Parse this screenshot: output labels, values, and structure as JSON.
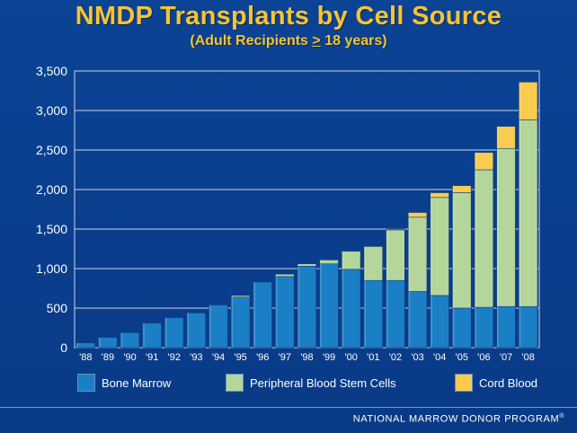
{
  "title": "NMDP Transplants by Cell Source",
  "subtitle_prefix": "(Adult Recipients ",
  "subtitle_symbol": ">",
  "subtitle_suffix": " 18 years)",
  "footer": "NATIONAL MARROW DONOR PROGRAM",
  "footer_mark": "®",
  "colors": {
    "background": "#0a3e8c",
    "title": "#f6c431",
    "bone_marrow": "#1b7fc6",
    "pbsc": "#b5d69a",
    "cord_blood": "#f7cc4f",
    "grid": "#c8d6ee"
  },
  "chart_data": {
    "type": "bar",
    "stacked": true,
    "title": "NMDP Transplants by Cell Source",
    "subtitle": "(Adult Recipients > 18 years)",
    "xlabel": "",
    "ylabel": "",
    "ylim": [
      0,
      3500
    ],
    "yticks": [
      0,
      500,
      1000,
      1500,
      2000,
      2500,
      3000,
      3500
    ],
    "ytick_labels": [
      "0",
      "500",
      "1,000",
      "1,500",
      "2,000",
      "2,500",
      "3,000",
      "3,500"
    ],
    "grid": true,
    "legend_position": "bottom",
    "categories": [
      "'88",
      "'89",
      "'90",
      "'91",
      "'92",
      "'93",
      "'94",
      "'95",
      "'96",
      "'97",
      "'98",
      "'99",
      "'00",
      "'01",
      "'02",
      "'03",
      "'04",
      "'05",
      "'06",
      "'07",
      "'08"
    ],
    "series": [
      {
        "name": "Bone Marrow",
        "color": "#1b7fc6",
        "values": [
          60,
          130,
          190,
          310,
          380,
          440,
          540,
          640,
          830,
          900,
          1030,
          1060,
          990,
          850,
          850,
          710,
          660,
          500,
          510,
          520,
          520
        ]
      },
      {
        "name": "Peripheral Blood Stem Cells",
        "color": "#b5d69a",
        "values": [
          0,
          0,
          0,
          0,
          0,
          0,
          0,
          20,
          0,
          30,
          30,
          50,
          230,
          430,
          640,
          940,
          1240,
          1460,
          1740,
          2000,
          2360
        ]
      },
      {
        "name": "Cord Blood",
        "color": "#f7cc4f",
        "values": [
          0,
          0,
          0,
          0,
          0,
          0,
          0,
          0,
          0,
          0,
          0,
          0,
          0,
          0,
          10,
          60,
          60,
          90,
          220,
          280,
          480
        ]
      }
    ]
  }
}
